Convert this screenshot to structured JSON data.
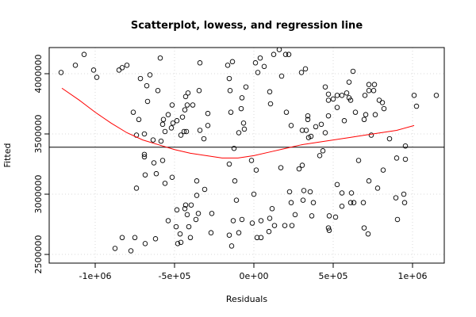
{
  "chart_data": {
    "type": "scatter",
    "title": "Scatterplot, lowess, and regression line",
    "xlabel": "Residuals",
    "ylabel": "Fitted",
    "xlim": [
      -1290000,
      1200000
    ],
    "ylim": [
      2428000,
      4217000
    ],
    "xticks": [
      {
        "value": -1000000,
        "label": "-1e+06"
      },
      {
        "value": -500000,
        "label": "-5e+05"
      },
      {
        "value": 0,
        "label": "0e+00"
      },
      {
        "value": 500000,
        "label": "5e+05"
      },
      {
        "value": 1000000,
        "label": "1e+06"
      }
    ],
    "yticks": [
      2500000,
      3000000,
      3500000,
      4000000
    ],
    "grid": true,
    "color": "#000000",
    "x": [
      -1215000,
      -1125000,
      -1070000,
      -1010000,
      -990000,
      -850000,
      -830000,
      -800000,
      -715000,
      -675000,
      -655000,
      -590000,
      -605000,
      -670000,
      -760000,
      -725000,
      -740000,
      -690000,
      -690000,
      -690000,
      -635000,
      -575000,
      -570000,
      -560000,
      -540000,
      -515000,
      -510000,
      -520000,
      -485000,
      -460000,
      -450000,
      -435000,
      -420000,
      -415000,
      -440000,
      -425000,
      -430000,
      -340000,
      -345000,
      -385000,
      -290000,
      -290000,
      -315000,
      -340000,
      -585000,
      -630000,
      -575000,
      -515000,
      -560000,
      -615000,
      -685000,
      -740000,
      -430000,
      -435000,
      -395000,
      -420000,
      -350000,
      -410000,
      -485000,
      -490000,
      -465000,
      -540000,
      -460000,
      -620000,
      -685000,
      -750000,
      -830000,
      -875000,
      -775000,
      -480000,
      -400000,
      -365000,
      -310000,
      -360000,
      -265000,
      -270000,
      -360000,
      -145000,
      -165000,
      -135000,
      -155000,
      -150000,
      -80000,
      -50000,
      -75000,
      -65000,
      -60000,
      -95000,
      -125000,
      -155000,
      -120000,
      -110000,
      -130000,
      -155000,
      -95000,
      -140000,
      -75000,
      -10000,
      0,
      15000,
      -15000,
      10000,
      25000,
      40000,
      65000,
      125000,
      200000,
      160000,
      220000,
      175000,
      100000,
      105000,
      205000,
      170000,
      235000,
      300000,
      325000,
      340000,
      340000,
      305000,
      330000,
      345000,
      360000,
      390000,
      425000,
      225000,
      115000,
      100000,
      95000,
      45000,
      20000,
      45000,
      130000,
      195000,
      240000,
      260000,
      235000,
      310000,
      355000,
      375000,
      365000,
      315000,
      285000,
      305000,
      415000,
      450000,
      470000,
      470000,
      500000,
      525000,
      525000,
      555000,
      600000,
      625000,
      585000,
      610000,
      470000,
      450000,
      435000,
      475000,
      515000,
      525000,
      555000,
      555000,
      610000,
      630000,
      615000,
      660000,
      700000,
      725000,
      755000,
      725000,
      760000,
      790000,
      810000,
      820000,
      765000,
      705000,
      695000,
      600000,
      640000,
      570000,
      740000,
      855000,
      900000,
      955000,
      955000,
      815000,
      725000,
      780000,
      945000,
      895000,
      905000,
      950000,
      690000,
      695000,
      720000,
      470000,
      475000,
      1010000,
      1025000,
      1150000
    ],
    "values": [
      4010000,
      4070000,
      4160000,
      4030000,
      3970000,
      4030000,
      4050000,
      4070000,
      3960000,
      3900000,
      3990000,
      4130000,
      3860000,
      3770000,
      3680000,
      3620000,
      3490000,
      3500000,
      3330000,
      3310000,
      3450000,
      3580000,
      3620000,
      3520000,
      3660000,
      3740000,
      3590000,
      3550000,
      3610000,
      3490000,
      3640000,
      3700000,
      3740000,
      3840000,
      3520000,
      3520000,
      3810000,
      4090000,
      3860000,
      3740000,
      3670000,
      3570000,
      3460000,
      3530000,
      3440000,
      3260000,
      3280000,
      3140000,
      3090000,
      3170000,
      3160000,
      3050000,
      2910000,
      2880000,
      2910000,
      2830000,
      2840000,
      2730000,
      2870000,
      2730000,
      2670000,
      2780000,
      2600000,
      2630000,
      2590000,
      2640000,
      2640000,
      2550000,
      2530000,
      2590000,
      2640000,
      2790000,
      3040000,
      2990000,
      2840000,
      2680000,
      3110000,
      3680000,
      4070000,
      4100000,
      3960000,
      3860000,
      3710000,
      3890000,
      3800000,
      3590000,
      3540000,
      3510000,
      3380000,
      3250000,
      3110000,
      2950000,
      2780000,
      2660000,
      2680000,
      2570000,
      2790000,
      2760000,
      3000000,
      3200000,
      3280000,
      4090000,
      4010000,
      4130000,
      4060000,
      4160000,
      4160000,
      4200000,
      4160000,
      3980000,
      3850000,
      3750000,
      3680000,
      3220000,
      3570000,
      4010000,
      4040000,
      3650000,
      3620000,
      3530000,
      3530000,
      3470000,
      3480000,
      3560000,
      3580000,
      3020000,
      2880000,
      2800000,
      2690000,
      2780000,
      2640000,
      2640000,
      2740000,
      2740000,
      2740000,
      2830000,
      2930000,
      2950000,
      3020000,
      2930000,
      2820000,
      3030000,
      3210000,
      3240000,
      3320000,
      3510000,
      3650000,
      3780000,
      3790000,
      3820000,
      3720000,
      3820000,
      3930000,
      4020000,
      3840000,
      3780000,
      3830000,
      3890000,
      3360000,
      2820000,
      2810000,
      3080000,
      3010000,
      2900000,
      2930000,
      2930000,
      3010000,
      3280000,
      3820000,
      3860000,
      3860000,
      3910000,
      3910000,
      3780000,
      3760000,
      3710000,
      3660000,
      3660000,
      3620000,
      3800000,
      3680000,
      3610000,
      3490000,
      3460000,
      3300000,
      3400000,
      3290000,
      3200000,
      3110000,
      3050000,
      3000000,
      2970000,
      2790000,
      2930000,
      2930000,
      2720000,
      2670000,
      2720000,
      2700000,
      3820000,
      3730000,
      3820000
    ],
    "lowess": {
      "color": "#ff0000",
      "x": [
        -1210000,
        -1100000,
        -1000000,
        -900000,
        -800000,
        -700000,
        -600000,
        -500000,
        -400000,
        -300000,
        -200000,
        -100000,
        0,
        100000,
        200000,
        300000,
        400000,
        500000,
        600000,
        700000,
        800000,
        900000,
        1010000
      ],
      "values": [
        3880000,
        3780000,
        3680000,
        3590000,
        3510000,
        3450000,
        3410000,
        3370000,
        3340000,
        3320000,
        3300000,
        3300000,
        3320000,
        3350000,
        3380000,
        3410000,
        3430000,
        3450000,
        3470000,
        3490000,
        3510000,
        3530000,
        3570000
      ]
    },
    "regression_line": {
      "value": 3390000,
      "color": "#000000"
    }
  }
}
